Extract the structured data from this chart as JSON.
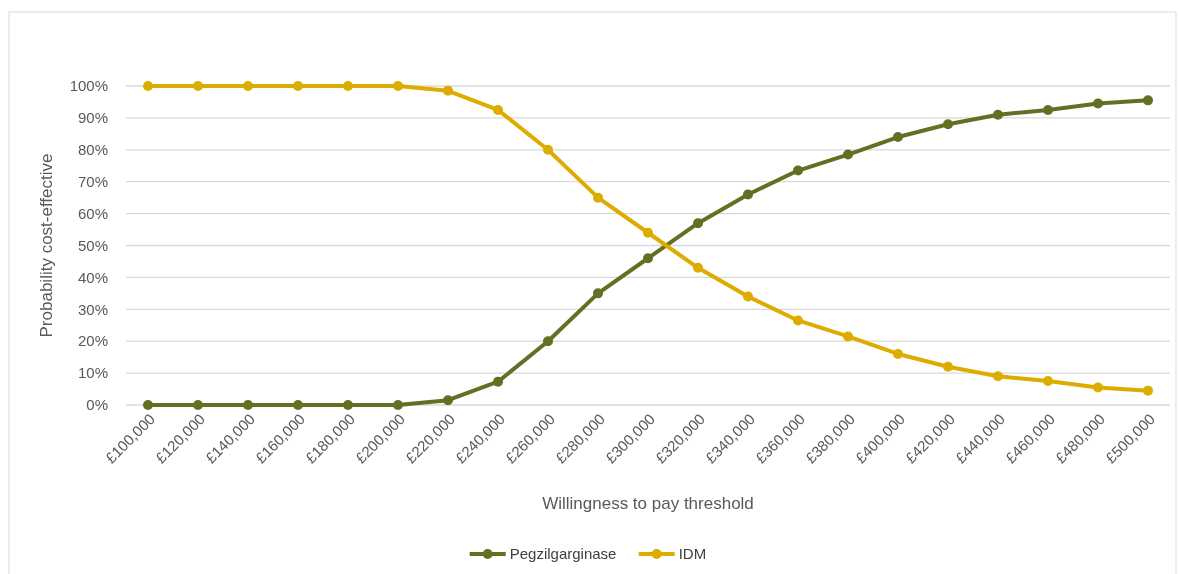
{
  "chart_data": {
    "type": "line",
    "xlabel": "Willingness to pay threshold",
    "ylabel": "Probability cost-effective",
    "categories": [
      "£100,000",
      "£120,000",
      "£140,000",
      "£160,000",
      "£180,000",
      "£200,000",
      "£220,000",
      "£240,000",
      "£260,000",
      "£280,000",
      "£300,000",
      "£320,000",
      "£340,000",
      "£360,000",
      "£380,000",
      "£400,000",
      "£420,000",
      "£440,000",
      "£460,000",
      "£480,000",
      "£500,000"
    ],
    "series": [
      {
        "name": "Pegzilgarginase",
        "color": "#636f22",
        "values": [
          0,
          0,
          0,
          0,
          0,
          0,
          1.5,
          7.3,
          20,
          35,
          46,
          57,
          66,
          73.5,
          78.5,
          84,
          88,
          91,
          92.5,
          94.5,
          95.5
        ]
      },
      {
        "name": "IDM",
        "color": "#dcad00",
        "values": [
          100,
          100,
          100,
          100,
          100,
          100,
          98.5,
          92.5,
          80,
          65,
          54,
          43,
          34,
          26.5,
          21.5,
          16,
          12,
          9,
          7.5,
          5.5,
          4.5
        ]
      }
    ],
    "ylim": [
      0,
      100
    ],
    "yticks": [
      {
        "value": 0,
        "label": "0%"
      },
      {
        "value": 10,
        "label": "10%"
      },
      {
        "value": 20,
        "label": "20%"
      },
      {
        "value": 30,
        "label": "30%"
      },
      {
        "value": 40,
        "label": "40%"
      },
      {
        "value": 50,
        "label": "50%"
      },
      {
        "value": 60,
        "label": "60%"
      },
      {
        "value": 70,
        "label": "70%"
      },
      {
        "value": 80,
        "label": "80%"
      },
      {
        "value": 90,
        "label": "90%"
      },
      {
        "value": 100,
        "label": "100%"
      }
    ],
    "grid": "y",
    "legend": "bottom",
    "marker": "circle",
    "line_style": "solid"
  }
}
